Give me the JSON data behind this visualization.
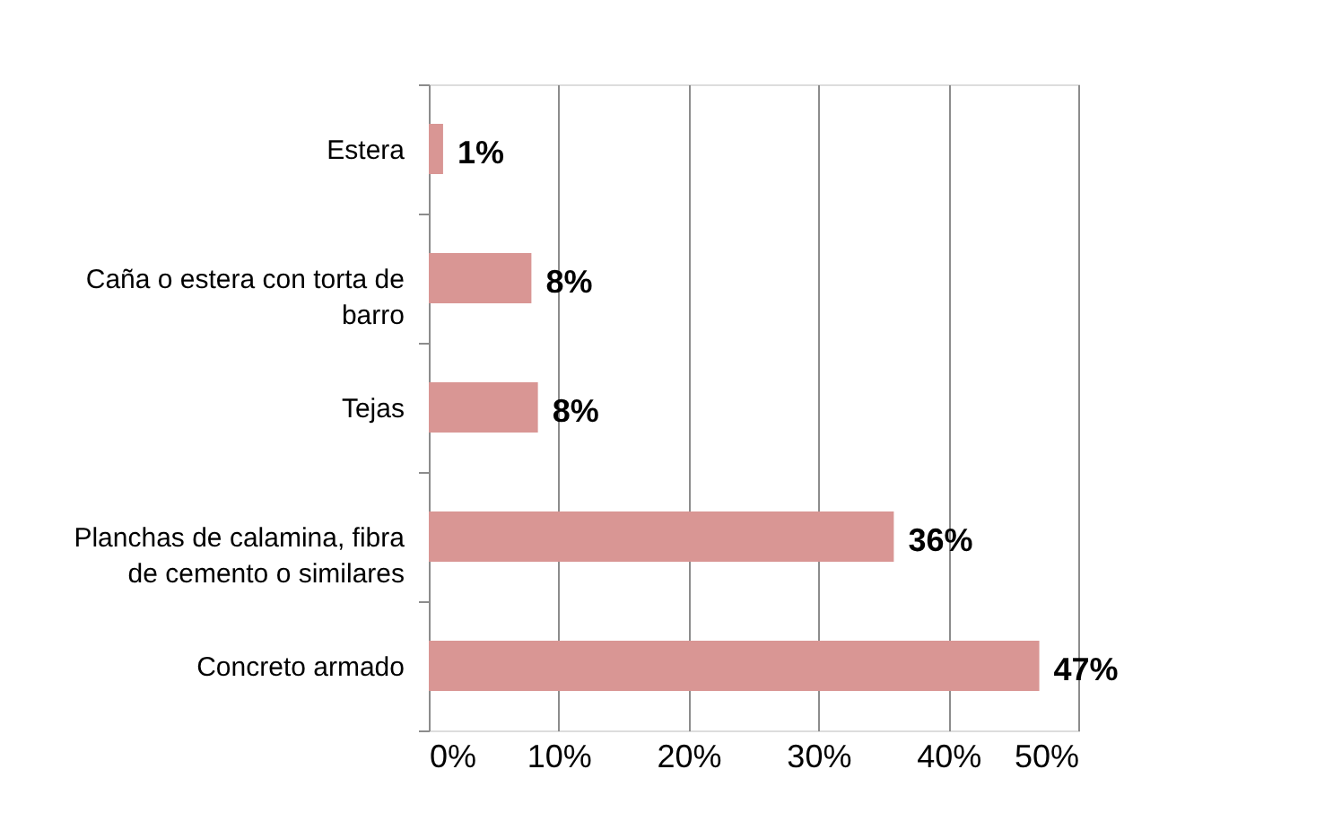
{
  "chart_data": {
    "type": "bar",
    "orientation": "horizontal",
    "categories": [
      "Estera",
      "Caña o estera con torta de barro",
      "Tejas",
      "Planchas de calamina, fibra de cemento o similares",
      "Concreto armado"
    ],
    "values": [
      1.1,
      7.9,
      8.4,
      35.8,
      47
    ],
    "value_labels": [
      "1%",
      "8%",
      "8%",
      "36%",
      "47%"
    ],
    "color": "#d99694",
    "xlim": [
      0,
      50
    ],
    "xticks": [
      {
        "value": 0,
        "label": "0%"
      },
      {
        "value": 10,
        "label": "10%"
      },
      {
        "value": 20,
        "label": "20%"
      },
      {
        "value": 30,
        "label": "30%"
      },
      {
        "value": 40,
        "label": "40%"
      },
      {
        "value": 50,
        "label": "50%"
      }
    ],
    "grid": "x"
  }
}
